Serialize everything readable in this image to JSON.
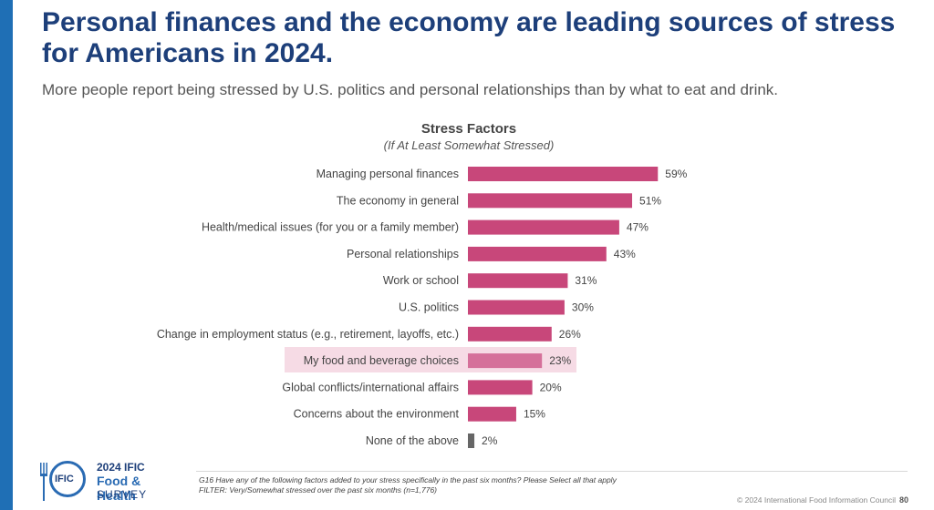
{
  "slide": {
    "title": "Personal finances and the economy are leading sources of stress for Americans in 2024.",
    "subtitle": "More people report being stressed by U.S. politics and personal relationships than by what to eat and drink."
  },
  "chart_data": {
    "type": "bar",
    "orientation": "horizontal",
    "title": "Stress Factors",
    "subtitle": "(If At Least Somewhat Stressed)",
    "categories": [
      "Managing personal finances",
      "The economy in general",
      "Health/medical issues (for you or a family member)",
      "Personal relationships",
      "Work or school",
      "U.S. politics",
      "Change in employment status (e.g., retirement, layoffs, etc.)",
      "My food and beverage choices",
      "Global conflicts/international affairs",
      "Concerns about the environment",
      "None of the above"
    ],
    "values": [
      59,
      51,
      47,
      43,
      31,
      30,
      26,
      23,
      20,
      15,
      2
    ],
    "data_labels": [
      "59%",
      "51%",
      "47%",
      "43%",
      "31%",
      "30%",
      "26%",
      "23%",
      "20%",
      "15%",
      "2%"
    ],
    "highlighted_category": "My food and beverage choices",
    "xlim": [
      0,
      100
    ],
    "grid": false,
    "colors": {
      "bar": "#c8477a",
      "highlight_bar": "#d5709a",
      "none_bar": "#666666",
      "highlight_background": "#f6dbe5"
    }
  },
  "logo": {
    "circle_text": "IFIC",
    "line1": "2024 IFIC",
    "line2": "Food & Health",
    "line3": "SURVEY"
  },
  "footer": {
    "question": "G16 Have any of the following factors added to your stress specifically in the past six months? Please Select all that apply",
    "filter": "FILTER: Very/Somewhat stressed over the past six months (n=1,776)",
    "copyright": "© 2024 International Food Information Council",
    "page_number": "80"
  },
  "colors": {
    "title": "#1d3f7a",
    "accent": "#1f6fb5"
  }
}
